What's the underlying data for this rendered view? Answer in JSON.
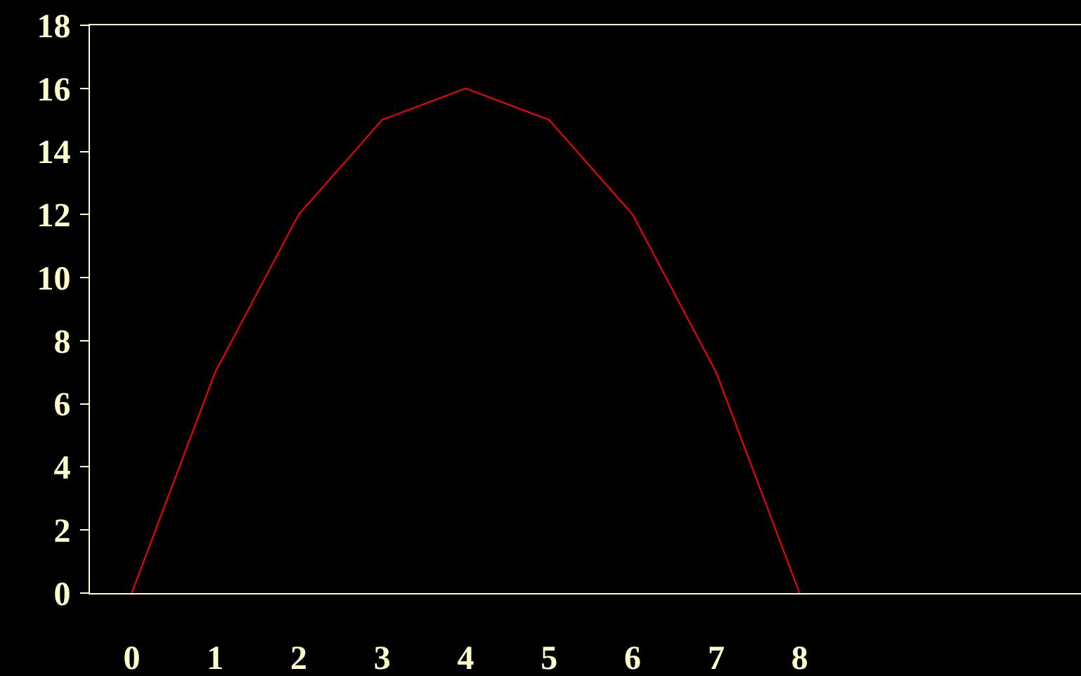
{
  "chart_data": {
    "type": "line",
    "x": [
      0,
      1,
      2,
      3,
      4,
      5,
      6,
      7,
      8
    ],
    "series": [
      {
        "color": "#ff0000",
        "values": [
          0,
          7,
          12,
          15,
          16,
          15,
          12,
          7,
          0
        ]
      }
    ],
    "xlim": [
      -0.5,
      11.37
    ],
    "xticks": [
      0,
      1,
      2,
      3,
      4,
      5,
      6,
      7,
      8
    ],
    "ylim": [
      0,
      18
    ],
    "yticks": [
      0,
      2,
      4,
      6,
      8,
      10,
      12,
      14,
      16,
      18
    ],
    "grid": false,
    "marker": "none",
    "line_style": "solid"
  }
}
